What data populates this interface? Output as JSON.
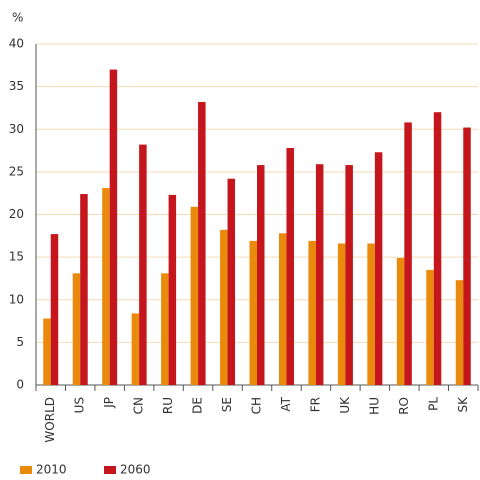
{
  "chart_data": {
    "type": "bar",
    "y_label": "%",
    "categories": [
      "WORLD",
      "US",
      "JP",
      "CN",
      "RU",
      "DE",
      "SE",
      "CH",
      "AT",
      "FR",
      "UK",
      "HU",
      "RO",
      "PL",
      "SK"
    ],
    "series": [
      {
        "name": "2010",
        "color": "#ea8a0c",
        "values": [
          7.8,
          13.1,
          23.1,
          8.4,
          13.1,
          20.9,
          18.2,
          16.9,
          17.8,
          16.9,
          16.6,
          16.6,
          14.9,
          13.5,
          12.3
        ]
      },
      {
        "name": "2060",
        "color": "#c4161c",
        "values": [
          17.7,
          22.4,
          37.0,
          28.2,
          22.3,
          33.2,
          24.2,
          25.8,
          27.8,
          25.9,
          25.8,
          27.3,
          30.8,
          32.0,
          30.2
        ]
      }
    ],
    "ylim": [
      0,
      40
    ],
    "yticks": [
      0,
      5,
      10,
      15,
      20,
      25,
      30,
      35,
      40
    ],
    "grid": true,
    "legend": "bottom-left"
  }
}
